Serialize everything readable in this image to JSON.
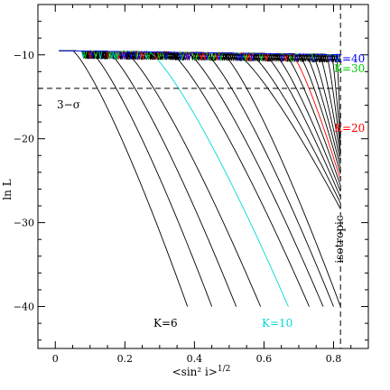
{
  "chart_data": {
    "type": "line",
    "xlabel": "<sin² i>^{1/2}",
    "xlabel_main": "<sin² i>",
    "xlabel_sup": "1/2",
    "ylabel": "ln L",
    "xlim": [
      -0.05,
      0.9
    ],
    "ylim": [
      -45,
      -4
    ],
    "xticks": [
      0,
      0.2,
      0.4,
      0.6,
      0.8
    ],
    "xtick_labels": [
      "0",
      "0.2",
      "0.4",
      "0.6",
      "0.8"
    ],
    "yticks": [
      -10,
      -20,
      -30,
      -40
    ],
    "ytick_labels": [
      "−10",
      "−20",
      "−30",
      "−40"
    ],
    "curve_params": {
      "K_values": [
        6,
        7,
        8,
        9,
        10,
        11,
        12,
        13,
        14,
        15,
        16,
        17,
        18,
        19,
        20,
        21,
        22,
        23,
        24,
        25,
        26,
        27,
        28,
        29,
        30,
        31,
        32,
        33,
        34,
        35,
        36,
        37,
        38,
        39,
        40
      ],
      "endpoint_x": [
        0.38,
        0.45,
        0.52,
        0.59,
        0.67,
        0.73,
        0.77,
        0.8,
        0.82
      ],
      "cliff_x": [
        0.05,
        0.1,
        0.15,
        0.2,
        0.27,
        0.33,
        0.38,
        0.43,
        0.48,
        0.52,
        0.56,
        0.6,
        0.63,
        0.66,
        0.68,
        0.7,
        0.72,
        0.74,
        0.76,
        0.78,
        0.795,
        0.81
      ],
      "end_y": -40.0,
      "plateau_y": -9.5,
      "isotropic_x": 0.82
    },
    "highlighted_series": [
      {
        "name": "K=6",
        "K": 6,
        "color": "#000000"
      },
      {
        "name": "K=10",
        "K": 10,
        "color": "#00d8d8"
      },
      {
        "name": "K=20",
        "K": 20,
        "color": "#ff0000"
      },
      {
        "name": "K=30",
        "K": 30,
        "color": "#00cc00"
      },
      {
        "name": "K=40",
        "K": 40,
        "color": "#0000ff"
      }
    ],
    "reference_lines": [
      {
        "type": "horizontal",
        "y": -14,
        "label": "3−σ"
      },
      {
        "type": "vertical",
        "x": 0.82,
        "label": "isotropic"
      }
    ],
    "labels": {
      "k6": "K=6",
      "k10": "K=10",
      "k20": "K=20",
      "k30": "K=30",
      "k40": "K=40",
      "sigma": "3−σ",
      "isotropic": "isotropic"
    },
    "colors": {
      "default": "#000000",
      "k10": "#00d8d8",
      "k20": "#ff0000",
      "k30": "#00cc00",
      "k40": "#0000ff"
    },
    "grid": false
  }
}
